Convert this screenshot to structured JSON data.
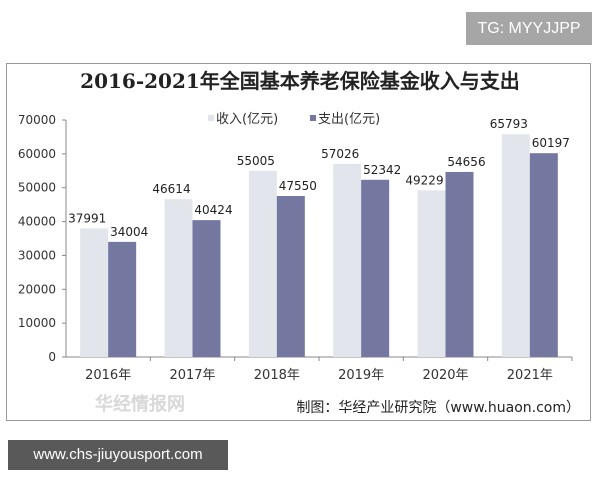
{
  "watermark": "TG: MYYJJPP",
  "footer_url": "www.chs-jiuyousport.com",
  "source": "制图：华经产业研究院（www.huaon.com）",
  "logo_text": "华经情报网",
  "colors": {
    "income": "#e3e5ec",
    "expense": "#7478a0"
  },
  "chart_data": {
    "type": "bar",
    "title": "2016-2021年全国基本养老保险基金收入与支出",
    "categories": [
      "2016年",
      "2017年",
      "2018年",
      "2019年",
      "2020年",
      "2021年"
    ],
    "series": [
      {
        "name": "收入(亿元)",
        "values": [
          37991,
          46614,
          55005,
          57026,
          49229,
          65793
        ]
      },
      {
        "name": "支出(亿元)",
        "values": [
          34004,
          40424,
          47550,
          52342,
          54656,
          60197
        ]
      }
    ],
    "ylim": [
      0,
      70000
    ],
    "yticks": [
      0,
      10000,
      20000,
      30000,
      40000,
      50000,
      60000,
      70000
    ],
    "legend": "top-center",
    "grid": false
  }
}
